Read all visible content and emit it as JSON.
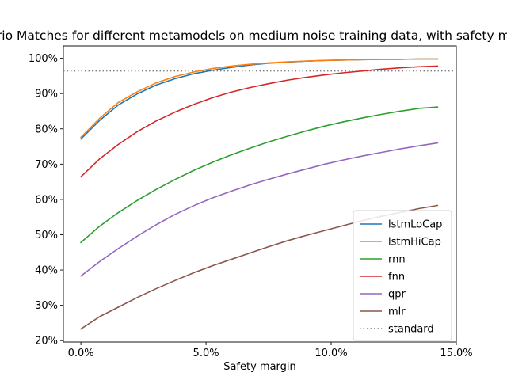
{
  "chart_data": {
    "type": "line",
    "title": "Scenario Matches for different metamodels on medium noise training data, with safety margins",
    "xlabel": "Safety margin",
    "ylabel": "",
    "xlim": [
      -0.7,
      15.0
    ],
    "ylim": [
      19.6,
      103.5
    ],
    "x_ticks": [
      {
        "value": 0,
        "label": "0.0%"
      },
      {
        "value": 5,
        "label": "5.0%"
      },
      {
        "value": 10,
        "label": "10.0%"
      },
      {
        "value": 15,
        "label": "15.0%"
      }
    ],
    "y_ticks": [
      {
        "value": 20,
        "label": "20%"
      },
      {
        "value": 30,
        "label": "30%"
      },
      {
        "value": 40,
        "label": "40%"
      },
      {
        "value": 50,
        "label": "50%"
      },
      {
        "value": 60,
        "label": "60%"
      },
      {
        "value": 70,
        "label": "70%"
      },
      {
        "value": 80,
        "label": "80%"
      },
      {
        "value": 90,
        "label": "90%"
      },
      {
        "value": 100,
        "label": "100%"
      }
    ],
    "grid": false,
    "legend_position": "lower-right",
    "x": [
      0,
      0.75,
      1.5,
      2.25,
      3,
      3.75,
      4.5,
      5.25,
      6,
      6.75,
      7.5,
      8.25,
      9,
      9.75,
      10.5,
      11.25,
      12,
      12.75,
      13.5,
      14.25
    ],
    "series": [
      {
        "name": "lstmLoCap",
        "color": "#1f77b4",
        "values": [
          77.1,
          82.4,
          86.8,
          89.9,
          92.4,
          94.2,
          95.6,
          96.6,
          97.4,
          98.1,
          98.6,
          98.9,
          99.2,
          99.4,
          99.5,
          99.6,
          99.7,
          99.7,
          99.8,
          99.8
        ]
      },
      {
        "name": "lstmHiCap",
        "color": "#ff7f0e",
        "values": [
          77.6,
          83.0,
          87.5,
          90.5,
          93.0,
          94.8,
          96.1,
          97.1,
          97.8,
          98.3,
          98.7,
          99.0,
          99.2,
          99.4,
          99.5,
          99.6,
          99.7,
          99.7,
          99.8,
          99.8
        ]
      },
      {
        "name": "rnn",
        "color": "#2ca02c",
        "values": [
          47.8,
          52.4,
          56.3,
          59.7,
          62.8,
          65.6,
          68.2,
          70.5,
          72.6,
          74.5,
          76.3,
          77.9,
          79.4,
          80.8,
          82.0,
          83.1,
          84.1,
          85.0,
          85.8,
          86.2
        ]
      },
      {
        "name": "fnn",
        "color": "#d62728",
        "values": [
          66.4,
          71.5,
          75.6,
          79.2,
          82.2,
          84.7,
          86.9,
          88.8,
          90.4,
          91.7,
          92.8,
          93.8,
          94.6,
          95.3,
          95.9,
          96.4,
          96.9,
          97.3,
          97.6,
          97.8
        ]
      },
      {
        "name": "qpr",
        "color": "#9467bd",
        "values": [
          38.3,
          42.4,
          46.1,
          49.6,
          52.8,
          55.7,
          58.2,
          60.4,
          62.3,
          64.1,
          65.7,
          67.2,
          68.6,
          70.0,
          71.2,
          72.3,
          73.3,
          74.3,
          75.2,
          76.0
        ]
      },
      {
        "name": "mlr",
        "color": "#8c564b",
        "values": [
          23.3,
          26.8,
          29.5,
          32.2,
          34.7,
          37.0,
          39.2,
          41.2,
          43.0,
          44.8,
          46.6,
          48.3,
          49.8,
          51.2,
          52.6,
          54.0,
          55.2,
          56.3,
          57.4,
          58.3
        ]
      }
    ],
    "reference_lines": [
      {
        "name": "standard",
        "y": 96.4,
        "color": "#808080",
        "style": "dotted"
      }
    ]
  }
}
